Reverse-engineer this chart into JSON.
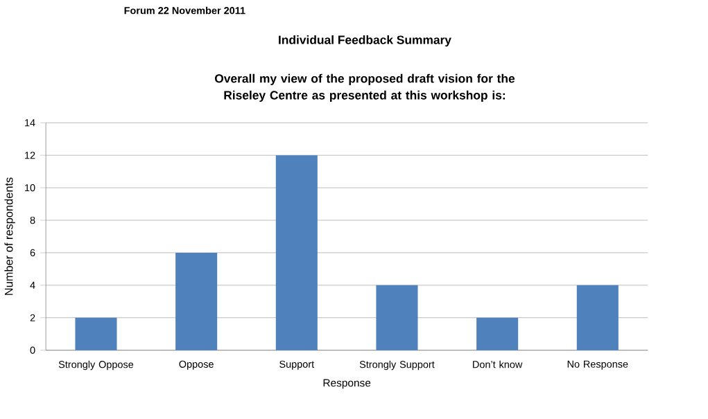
{
  "chart_data": {
    "type": "bar",
    "title": "Individual Feedback Summary",
    "subtitle": "Overall my view of the proposed draft vision for the Riseley Centre as presented at this workshop is:",
    "annotations": [
      "Forum 22 November 2011"
    ],
    "xlabel": "Response",
    "ylabel": "Number of respondents",
    "categories": [
      "Strongly Oppose",
      "Oppose",
      "Support",
      "Strongly Support",
      "Don’t know",
      "No Response"
    ],
    "values": [
      2,
      6,
      12,
      4,
      2,
      4
    ],
    "color": "#4f81bd",
    "ylim": [
      0,
      14
    ],
    "yticks": [
      0,
      2,
      4,
      6,
      8,
      10,
      12,
      14
    ],
    "grid": "y"
  }
}
